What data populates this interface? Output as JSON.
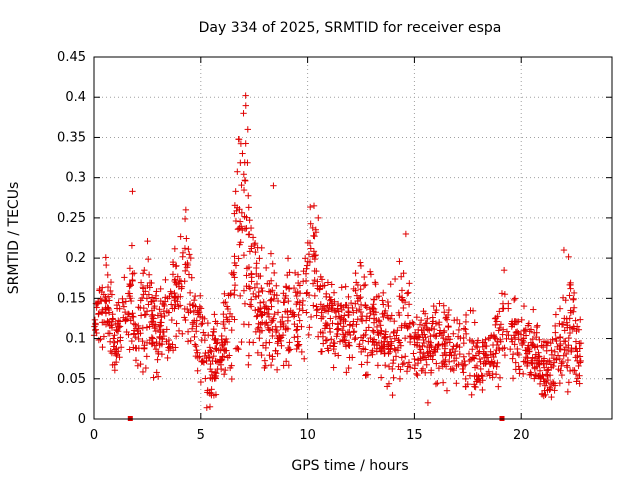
{
  "chart_data": {
    "type": "scatter",
    "title": "Day 334 of 2025, SRMTID for receiver espa",
    "xlabel": "GPS time / hours",
    "ylabel": "SRMTID / TECUs",
    "xlim": [
      0,
      24.25
    ],
    "ylim": [
      0,
      0.45
    ],
    "xticks": [
      0,
      5,
      10,
      15,
      20
    ],
    "xtick_labels": [
      "0",
      "5",
      "10",
      "15",
      "20"
    ],
    "yticks": [
      0,
      0.05,
      0.1,
      0.15,
      0.2,
      0.25,
      0.3,
      0.35,
      0.4,
      0.45
    ],
    "ytick_labels": [
      "0",
      "0.05",
      "0.1",
      "0.15",
      "0.2",
      "0.25",
      "0.3",
      "0.35",
      "0.4",
      "0.45"
    ],
    "grid": true,
    "marker": "plus",
    "color": "#e00000",
    "baseline_markers_x": [
      1.7,
      19.1
    ],
    "envelope": {
      "x": [
        0,
        0.5,
        1,
        1.5,
        1.8,
        2,
        2.5,
        3,
        3.5,
        4,
        4.3,
        4.6,
        5,
        5.3,
        5.7,
        6,
        6.3,
        6.6,
        6.9,
        7.1,
        7.4,
        7.7,
        8,
        8.3,
        8.7,
        9,
        9.5,
        10,
        10.3,
        10.6,
        11,
        11.5,
        12,
        12.5,
        13,
        13.5,
        14,
        14.5,
        15,
        15.5,
        16,
        16.5,
        17,
        17.5,
        18,
        18.5,
        19,
        19.3,
        19.6,
        20,
        20.5,
        21,
        21.5,
        22,
        22.3,
        22.8
      ],
      "center": [
        0.12,
        0.14,
        0.1,
        0.13,
        0.15,
        0.09,
        0.14,
        0.11,
        0.12,
        0.16,
        0.18,
        0.12,
        0.11,
        0.06,
        0.08,
        0.09,
        0.12,
        0.2,
        0.24,
        0.22,
        0.18,
        0.13,
        0.12,
        0.14,
        0.11,
        0.13,
        0.12,
        0.18,
        0.2,
        0.13,
        0.12,
        0.11,
        0.12,
        0.13,
        0.12,
        0.11,
        0.1,
        0.12,
        0.09,
        0.09,
        0.1,
        0.09,
        0.08,
        0.09,
        0.07,
        0.08,
        0.1,
        0.12,
        0.11,
        0.09,
        0.09,
        0.06,
        0.07,
        0.09,
        0.12,
        0.08
      ],
      "spread": [
        0.03,
        0.04,
        0.04,
        0.04,
        0.07,
        0.03,
        0.05,
        0.04,
        0.04,
        0.05,
        0.06,
        0.04,
        0.04,
        0.04,
        0.04,
        0.03,
        0.05,
        0.08,
        0.1,
        0.12,
        0.06,
        0.05,
        0.05,
        0.06,
        0.04,
        0.05,
        0.04,
        0.07,
        0.07,
        0.05,
        0.04,
        0.04,
        0.04,
        0.05,
        0.04,
        0.04,
        0.04,
        0.06,
        0.03,
        0.04,
        0.04,
        0.03,
        0.03,
        0.04,
        0.03,
        0.03,
        0.04,
        0.06,
        0.04,
        0.03,
        0.03,
        0.03,
        0.03,
        0.04,
        0.06,
        0.03
      ],
      "point_count": 1700,
      "peaks": [
        [
          7.1,
          0.402
        ],
        [
          7.0,
          0.38
        ],
        [
          7.2,
          0.36
        ],
        [
          6.95,
          0.33
        ],
        [
          1.8,
          0.283
        ],
        [
          8.4,
          0.29
        ],
        [
          10.3,
          0.265
        ],
        [
          14.6,
          0.23
        ],
        [
          4.3,
          0.26
        ],
        [
          10.5,
          0.25
        ],
        [
          22.0,
          0.21
        ],
        [
          19.2,
          0.185
        ],
        [
          3.7,
          0.195
        ]
      ]
    }
  }
}
